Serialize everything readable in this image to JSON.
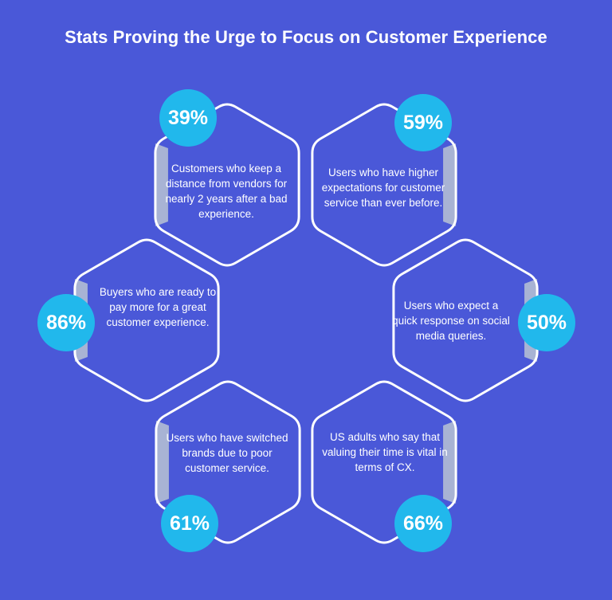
{
  "title": "Stats Proving the Urge to Focus on Customer Experience",
  "colors": {
    "background": "#4a58d8",
    "hex_stroke": "#ffffff",
    "hex_shade": "#b9c3d4",
    "badge": "#21b8ec",
    "text": "#ffffff"
  },
  "stats": [
    {
      "id": "s39",
      "percent": "39%",
      "text": "Customers who keep a distance from vendors for nearly 2 years after a bad experience."
    },
    {
      "id": "s59",
      "percent": "59%",
      "text": "Users who have higher expectations for customer service than ever before."
    },
    {
      "id": "s86",
      "percent": "86%",
      "text": "Buyers who are ready to pay more for a great customer experience."
    },
    {
      "id": "s50",
      "percent": "50%",
      "text": "Users who expect a quick response on social media queries."
    },
    {
      "id": "s61",
      "percent": "61%",
      "text": "Users who have switched brands due to poor customer service."
    },
    {
      "id": "s66",
      "percent": "66%",
      "text": "US adults who say that valuing their time is vital in terms of CX."
    }
  ]
}
